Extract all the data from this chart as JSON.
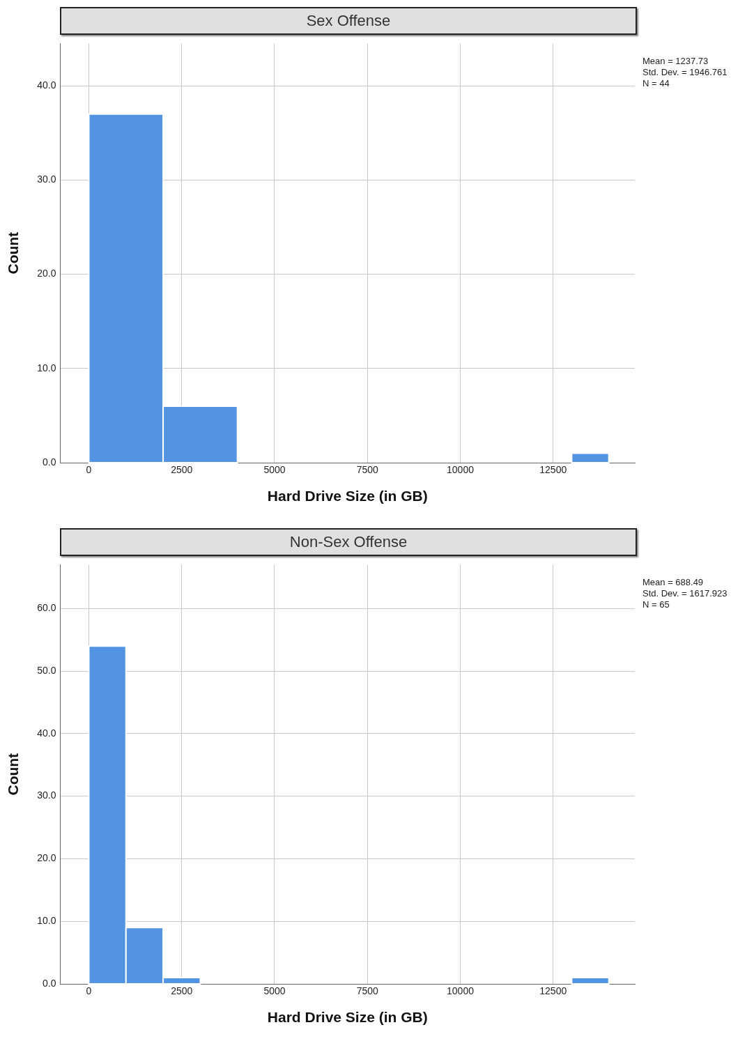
{
  "chart_data": [
    {
      "type": "histogram",
      "title": "Sex Offense",
      "xlabel": "Hard Drive Size (in GB)",
      "ylabel": "Count",
      "bins": [
        0,
        2000,
        4000,
        13000,
        14000
      ],
      "values": [
        37,
        6,
        0,
        1
      ],
      "color": "#5294e2",
      "xlim": [
        -770,
        14700
      ],
      "xticks": [
        0,
        2500,
        5000,
        7500,
        10000,
        12500
      ],
      "ylim": [
        0,
        44.5
      ],
      "yticks": [
        {
          "value": 0,
          "label": "0.0"
        },
        {
          "value": 10,
          "label": "10.0"
        },
        {
          "value": 20,
          "label": "20.0"
        },
        {
          "value": 30,
          "label": "30.0"
        },
        {
          "value": 40,
          "label": "40.0"
        }
      ],
      "grid": true,
      "annotations": [
        "Mean = 1237.73",
        "Std. Dev. = 1946.761",
        "N = 44"
      ]
    },
    {
      "type": "histogram",
      "title": "Non-Sex Offense",
      "xlabel": "Hard Drive Size (in GB)",
      "ylabel": "Count",
      "bins": [
        0,
        1000,
        2000,
        3000,
        13000,
        14000
      ],
      "values": [
        54,
        9,
        1,
        0,
        1
      ],
      "color": "#5294e2",
      "xlim": [
        -770,
        14700
      ],
      "xticks": [
        0,
        2500,
        5000,
        7500,
        10000,
        12500
      ],
      "ylim": [
        0,
        67
      ],
      "yticks": [
        {
          "value": 0,
          "label": "0.0"
        },
        {
          "value": 10,
          "label": "10.0"
        },
        {
          "value": 20,
          "label": "20.0"
        },
        {
          "value": 30,
          "label": "30.0"
        },
        {
          "value": 40,
          "label": "40.0"
        },
        {
          "value": 50,
          "label": "50.0"
        },
        {
          "value": 60,
          "label": "60.0"
        }
      ],
      "grid": true,
      "annotations": [
        "Mean = 688.49",
        "Std. Dev. = 1617.923",
        "N = 65"
      ]
    }
  ]
}
